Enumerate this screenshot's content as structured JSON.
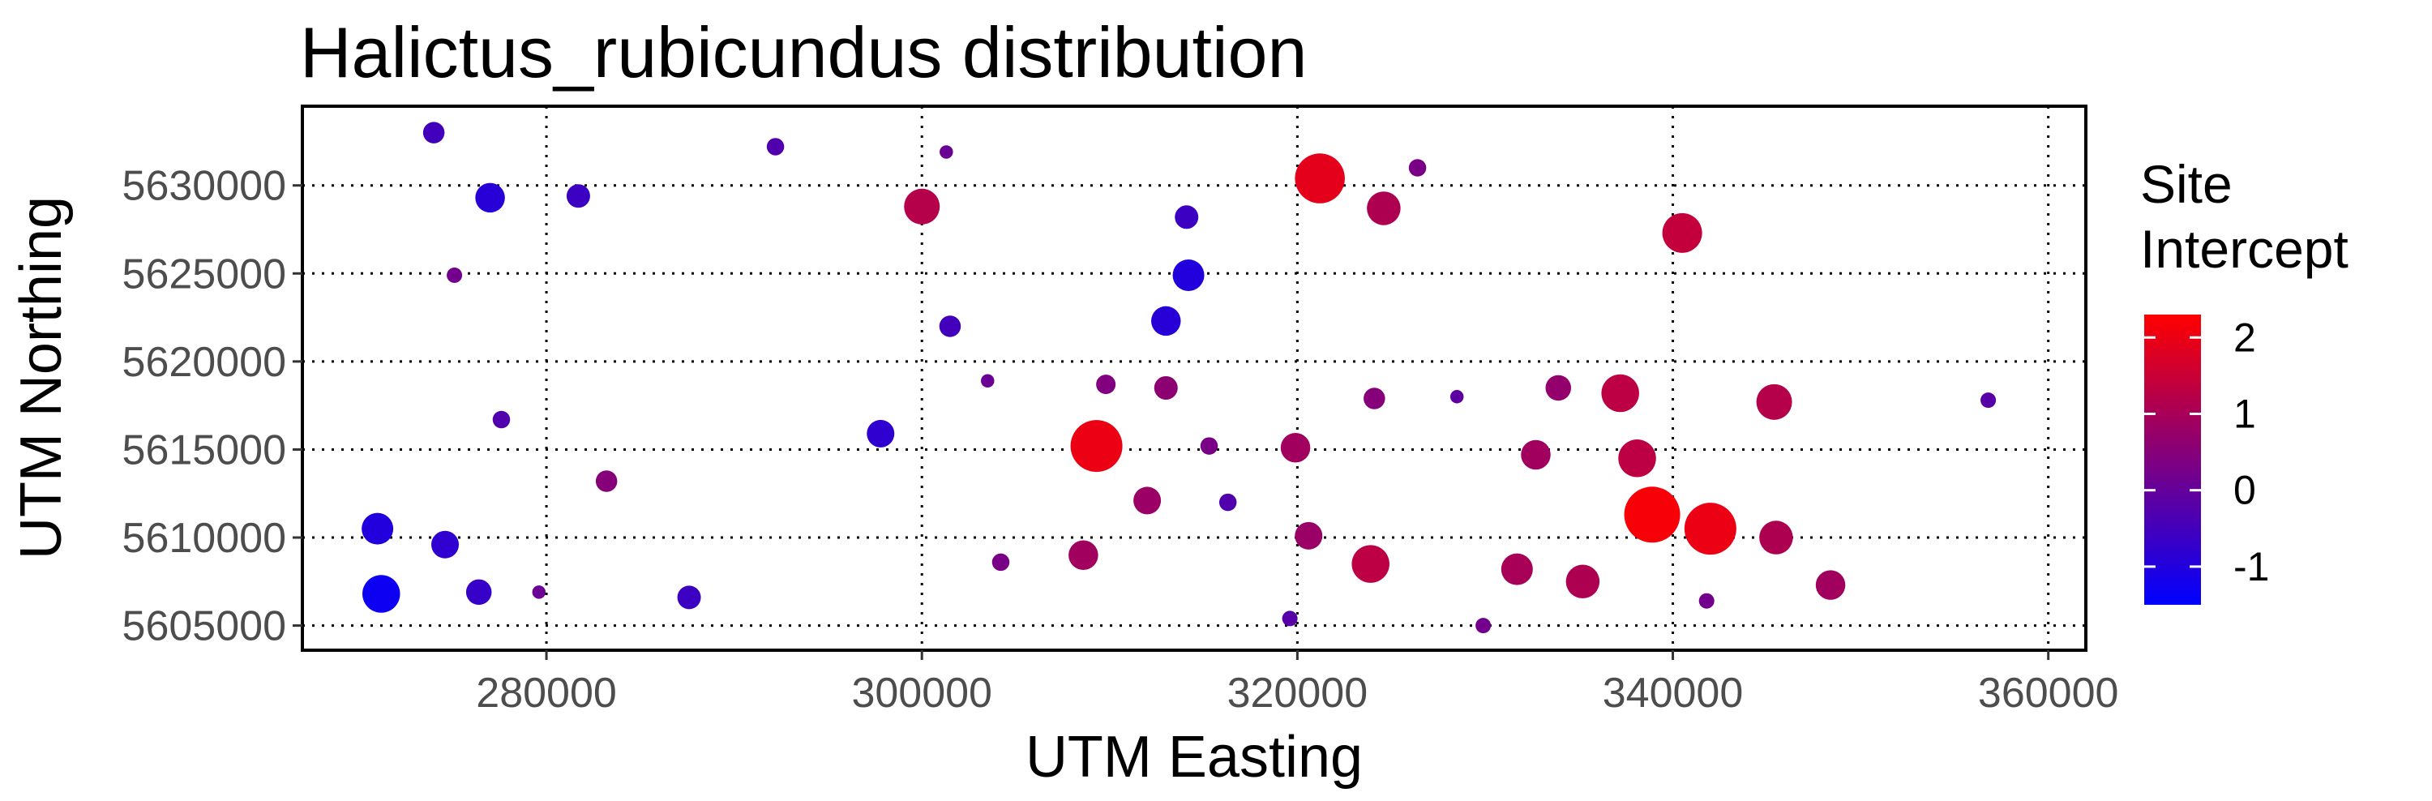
{
  "chart_data": {
    "type": "scatter",
    "title": "Halictus_rubicundus distribution",
    "xlabel": "UTM Easting",
    "ylabel": "UTM Northing",
    "xlim": [
      267000,
      362000
    ],
    "ylim": [
      5603600,
      5634500
    ],
    "x_ticks": [
      280000,
      300000,
      320000,
      340000,
      360000
    ],
    "y_ticks": [
      5605000,
      5610000,
      5615000,
      5620000,
      5625000,
      5630000
    ],
    "x_tick_labels": [
      "280000",
      "300000",
      "320000",
      "340000",
      "360000"
    ],
    "y_tick_labels": [
      "5605000",
      "5610000",
      "5615000",
      "5620000",
      "5625000",
      "5630000"
    ],
    "grid": true,
    "grid_style": "dotted",
    "legend": {
      "title_lines": [
        "Site",
        "Intercept"
      ],
      "placement": "right",
      "range": [
        -1.5,
        2.3
      ],
      "ticks": [
        2,
        1,
        0,
        -1
      ],
      "tick_labels": [
        "2",
        "1",
        "0",
        "-1"
      ],
      "colors": [
        "#0000ff",
        "#ff0000"
      ]
    },
    "series": [
      {
        "points": [
          {
            "x": 274000,
            "y": 5633000,
            "v": -0.5
          },
          {
            "x": 292200,
            "y": 5632200,
            "v": -0.3
          },
          {
            "x": 301300,
            "y": 5631900,
            "v": 0.1
          },
          {
            "x": 277000,
            "y": 5629300,
            "v": -0.9
          },
          {
            "x": 281700,
            "y": 5629400,
            "v": -0.6
          },
          {
            "x": 300000,
            "y": 5628800,
            "v": 1.2
          },
          {
            "x": 321200,
            "y": 5630400,
            "v": 1.9
          },
          {
            "x": 326400,
            "y": 5631000,
            "v": 0.3
          },
          {
            "x": 324600,
            "y": 5628700,
            "v": 1.1
          },
          {
            "x": 314100,
            "y": 5628200,
            "v": -0.6
          },
          {
            "x": 340500,
            "y": 5627300,
            "v": 1.4
          },
          {
            "x": 275100,
            "y": 5624900,
            "v": 0.2
          },
          {
            "x": 314200,
            "y": 5624900,
            "v": -1.0
          },
          {
            "x": 301500,
            "y": 5622000,
            "v": -0.5
          },
          {
            "x": 313000,
            "y": 5622300,
            "v": -0.9
          },
          {
            "x": 303500,
            "y": 5618900,
            "v": 0.1
          },
          {
            "x": 309800,
            "y": 5618700,
            "v": 0.4
          },
          {
            "x": 313000,
            "y": 5618500,
            "v": 0.6
          },
          {
            "x": 324100,
            "y": 5617900,
            "v": 0.5
          },
          {
            "x": 328500,
            "y": 5618000,
            "v": -0.1
          },
          {
            "x": 333900,
            "y": 5618500,
            "v": 0.7
          },
          {
            "x": 337200,
            "y": 5618200,
            "v": 1.3
          },
          {
            "x": 345400,
            "y": 5617700,
            "v": 1.2
          },
          {
            "x": 356800,
            "y": 5617800,
            "v": -0.2
          },
          {
            "x": 277600,
            "y": 5616700,
            "v": -0.3
          },
          {
            "x": 297800,
            "y": 5615900,
            "v": -0.8
          },
          {
            "x": 309300,
            "y": 5615200,
            "v": 2.0
          },
          {
            "x": 315300,
            "y": 5615200,
            "v": 0.3
          },
          {
            "x": 319900,
            "y": 5615100,
            "v": 0.9
          },
          {
            "x": 332700,
            "y": 5614700,
            "v": 0.9
          },
          {
            "x": 338100,
            "y": 5614500,
            "v": 1.3
          },
          {
            "x": 283200,
            "y": 5613200,
            "v": 0.5
          },
          {
            "x": 312000,
            "y": 5612100,
            "v": 0.8
          },
          {
            "x": 316300,
            "y": 5612000,
            "v": -0.3
          },
          {
            "x": 338900,
            "y": 5611300,
            "v": 2.2
          },
          {
            "x": 342000,
            "y": 5610500,
            "v": 2.0
          },
          {
            "x": 271000,
            "y": 5610500,
            "v": -1.0
          },
          {
            "x": 274600,
            "y": 5609600,
            "v": -0.8
          },
          {
            "x": 320600,
            "y": 5610100,
            "v": 0.8
          },
          {
            "x": 345500,
            "y": 5610000,
            "v": 1.1
          },
          {
            "x": 304200,
            "y": 5608600,
            "v": 0.3
          },
          {
            "x": 308600,
            "y": 5609000,
            "v": 0.9
          },
          {
            "x": 323900,
            "y": 5608500,
            "v": 1.3
          },
          {
            "x": 331700,
            "y": 5608200,
            "v": 1.0
          },
          {
            "x": 335200,
            "y": 5607500,
            "v": 1.1
          },
          {
            "x": 348400,
            "y": 5607300,
            "v": 0.9
          },
          {
            "x": 271200,
            "y": 5606800,
            "v": -1.3
          },
          {
            "x": 276400,
            "y": 5606900,
            "v": -0.7
          },
          {
            "x": 279600,
            "y": 5606900,
            "v": 0.1
          },
          {
            "x": 287600,
            "y": 5606600,
            "v": -0.6
          },
          {
            "x": 341800,
            "y": 5606400,
            "v": 0.2
          },
          {
            "x": 319600,
            "y": 5605400,
            "v": -0.2
          },
          {
            "x": 329900,
            "y": 5605000,
            "v": 0.2
          }
        ]
      }
    ]
  }
}
